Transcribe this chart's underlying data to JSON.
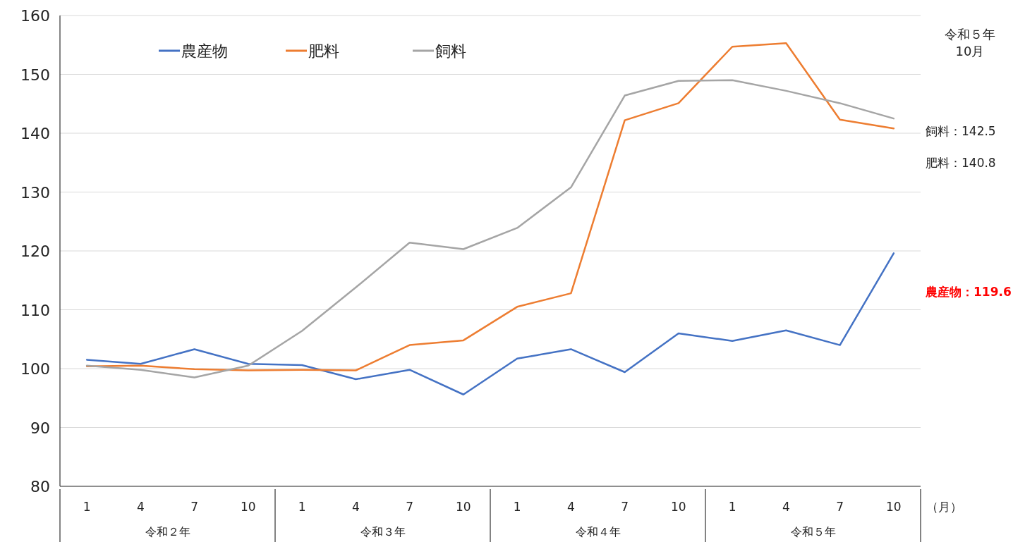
{
  "chart_data": {
    "type": "line",
    "categories": [
      "1",
      "4",
      "7",
      "10",
      "1",
      "4",
      "7",
      "10",
      "1",
      "4",
      "7",
      "10",
      "1",
      "4",
      "7",
      "10"
    ],
    "series": [
      {
        "name": "農産物",
        "color": "#4472c4",
        "values": [
          101.5,
          100.8,
          103.3,
          100.8,
          100.6,
          98.2,
          99.8,
          95.6,
          101.7,
          103.3,
          99.4,
          106.0,
          104.7,
          106.5,
          104.0,
          119.6
        ]
      },
      {
        "name": "肥料",
        "color": "#ed7d31",
        "values": [
          100.4,
          100.5,
          99.9,
          99.7,
          99.8,
          99.7,
          104.0,
          104.8,
          110.5,
          112.8,
          142.2,
          145.1,
          154.7,
          155.3,
          142.3,
          140.8
        ]
      },
      {
        "name": "飼料",
        "color": "#a5a5a5",
        "values": [
          100.5,
          99.8,
          98.5,
          100.5,
          106.4,
          113.8,
          121.4,
          120.3,
          123.9,
          130.8,
          146.4,
          148.9,
          149.0,
          147.2,
          145.1,
          142.5
        ]
      }
    ],
    "ylim": [
      80,
      160
    ],
    "yticks": [
      80,
      90,
      100,
      110,
      120,
      130,
      140,
      150,
      160
    ],
    "grid": "y",
    "legend": "top left",
    "marker": "none",
    "line_style": "solid",
    "annotations": [
      "令和５年\n10月",
      "飼料：142.5",
      "肥料：140.8",
      "農産物：119.6",
      "（月）",
      "令和２年",
      "令和３年",
      "令和４年",
      "令和５年"
    ]
  }
}
